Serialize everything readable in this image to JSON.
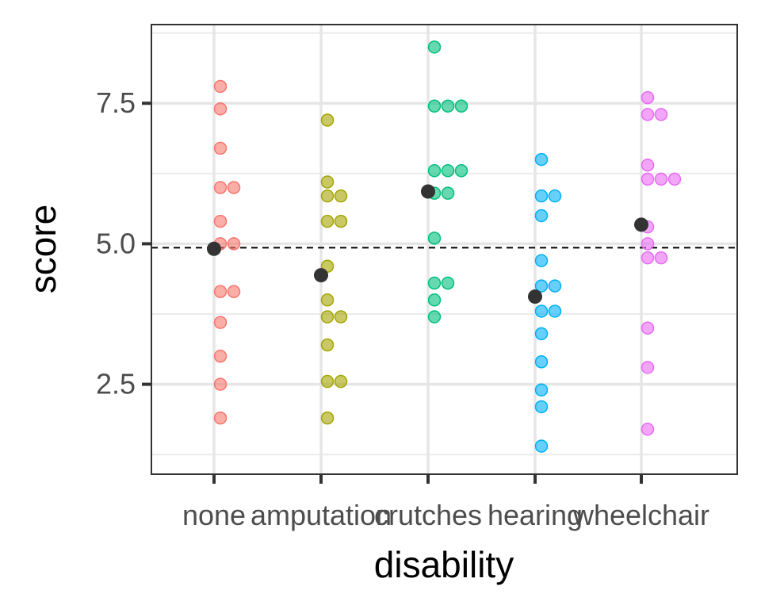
{
  "chart_data": {
    "type": "scatter",
    "xlabel": "disability",
    "ylabel": "score",
    "categories": [
      "none",
      "amputation",
      "crutches",
      "hearing",
      "wheelchair"
    ],
    "yticks": [
      2.5,
      5.0,
      7.5
    ],
    "ytick_labels": [
      "2.5",
      "5.0",
      "7.5"
    ],
    "ylim": [
      0.9,
      8.9
    ],
    "reference_line": {
      "y": 4.93,
      "style": "dashed"
    },
    "grid": true,
    "series": [
      {
        "category": "none",
        "color": "#F8766D",
        "points": [
          [
            0,
            7.8
          ],
          [
            0,
            7.4
          ],
          [
            0,
            6.7
          ],
          [
            0,
            6.0
          ],
          [
            1,
            6.0
          ],
          [
            0,
            5.4
          ],
          [
            0,
            5.0
          ],
          [
            1,
            5.0
          ],
          [
            0,
            4.15
          ],
          [
            1,
            4.15
          ],
          [
            0,
            3.6
          ],
          [
            0,
            3.0
          ],
          [
            0,
            2.5
          ],
          [
            0,
            1.9
          ]
        ]
      },
      {
        "category": "amputation",
        "color": "#A3A500",
        "points": [
          [
            0,
            7.2
          ],
          [
            0,
            6.1
          ],
          [
            0,
            5.85
          ],
          [
            1,
            5.85
          ],
          [
            0,
            5.4
          ],
          [
            1,
            5.4
          ],
          [
            0,
            4.6
          ],
          [
            0,
            4.0
          ],
          [
            0,
            3.7
          ],
          [
            1,
            3.7
          ],
          [
            0,
            3.2
          ],
          [
            0,
            2.55
          ],
          [
            1,
            2.55
          ],
          [
            0,
            1.9
          ]
        ]
      },
      {
        "category": "crutches",
        "color": "#00BF7D",
        "points": [
          [
            0,
            8.5
          ],
          [
            0,
            7.45
          ],
          [
            1,
            7.45
          ],
          [
            2,
            7.45
          ],
          [
            0,
            6.3
          ],
          [
            1,
            6.3
          ],
          [
            2,
            6.3
          ],
          [
            0,
            5.9
          ],
          [
            1,
            5.9
          ],
          [
            0,
            5.1
          ],
          [
            0,
            4.3
          ],
          [
            1,
            4.3
          ],
          [
            0,
            4.0
          ],
          [
            0,
            3.7
          ]
        ]
      },
      {
        "category": "hearing",
        "color": "#00B0F6",
        "points": [
          [
            0,
            6.5
          ],
          [
            0,
            5.85
          ],
          [
            1,
            5.85
          ],
          [
            0,
            5.5
          ],
          [
            0,
            4.7
          ],
          [
            0,
            4.25
          ],
          [
            1,
            4.25
          ],
          [
            0,
            3.8
          ],
          [
            1,
            3.8
          ],
          [
            0,
            3.4
          ],
          [
            0,
            2.9
          ],
          [
            0,
            2.4
          ],
          [
            0,
            2.1
          ],
          [
            0,
            1.4
          ]
        ]
      },
      {
        "category": "wheelchair",
        "color": "#E76BF3",
        "points": [
          [
            0,
            7.6
          ],
          [
            0,
            7.3
          ],
          [
            1,
            7.3
          ],
          [
            0,
            6.4
          ],
          [
            0,
            6.15
          ],
          [
            1,
            6.15
          ],
          [
            2,
            6.15
          ],
          [
            0,
            5.3
          ],
          [
            0,
            5.0
          ],
          [
            0,
            4.75
          ],
          [
            1,
            4.75
          ],
          [
            0,
            3.5
          ],
          [
            0,
            2.8
          ],
          [
            0,
            1.7
          ]
        ]
      }
    ],
    "means": [
      4.91,
      4.44,
      5.93,
      4.06,
      5.34
    ],
    "mean_color": "#333333",
    "point_alpha": 0.6
  }
}
